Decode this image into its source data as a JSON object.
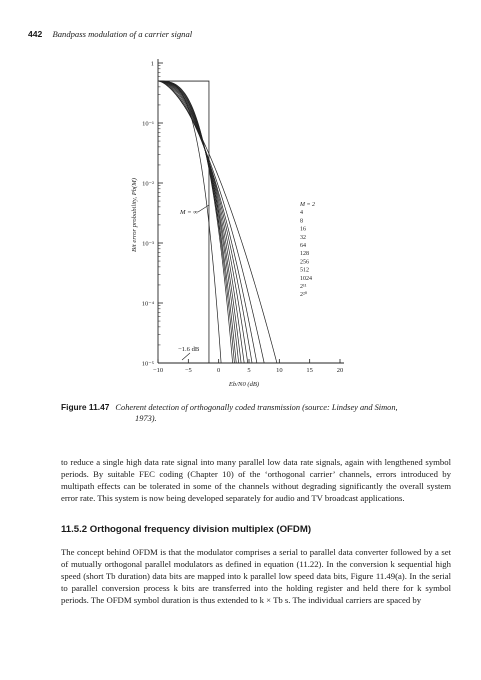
{
  "header": {
    "page_number": "442",
    "running_title": "Bandpass modulation of a carrier signal"
  },
  "chart_data": {
    "type": "line",
    "title": "",
    "xlabel": "Eb/N0 (dB)",
    "ylabel": "Bit error probability, Pb(M)",
    "xlim": [
      -10,
      20
    ],
    "ylim_log10": [
      -5,
      0
    ],
    "y_scale": "log",
    "x_ticks": [
      "−10",
      "−5",
      "0",
      "5",
      "10",
      "15",
      "20"
    ],
    "y_ticks": [
      "1",
      "10⁻¹",
      "10⁻²",
      "10⁻³",
      "10⁻⁴",
      "10⁻⁵"
    ],
    "series_labels": [
      "M = 2",
      "4",
      "8",
      "16",
      "32",
      "64",
      "128",
      "256",
      "512",
      "1024",
      "2¹¹",
      "2²⁰"
    ],
    "limit_label": "M = ∞",
    "annotation": "−1.6 dB",
    "series": [
      {
        "name": "M = 2",
        "threshold_db": 9.6
      },
      {
        "name": "4",
        "threshold_db": 7.5
      },
      {
        "name": "8",
        "threshold_db": 6.3
      },
      {
        "name": "16",
        "threshold_db": 5.5
      },
      {
        "name": "32",
        "threshold_db": 4.8
      },
      {
        "name": "64",
        "threshold_db": 4.2
      },
      {
        "name": "128",
        "threshold_db": 3.7
      },
      {
        "name": "256",
        "threshold_db": 3.3
      },
      {
        "name": "512",
        "threshold_db": 2.9
      },
      {
        "name": "1024",
        "threshold_db": 2.6
      },
      {
        "name": "2¹¹",
        "threshold_db": 2.3
      },
      {
        "name": "2²⁰",
        "threshold_db": 0.4
      }
    ],
    "limit_threshold_db": -1.6
  },
  "figure": {
    "label": "Figure 11.47",
    "caption_line1": "Coherent detection of orthogonally coded transmission (source: Lindsey and Simon,",
    "caption_line2": "1973)."
  },
  "body": {
    "para1": "to reduce a single high data rate signal into many parallel low data rate signals, again with lengthened symbol periods. By suitable FEC coding (Chapter 10) of the ‘orthogonal carrier’ channels, errors introduced by multipath effects can be tolerated in some of the channels without degrading significantly the overall system error rate. This system is now being developed separately for audio and TV broadcast applications.",
    "section_heading": "11.5.2 Orthogonal frequency division multiplex (OFDM)",
    "para2": "The concept behind OFDM is that the modulator comprises a serial to parallel data converter followed by a set of mutually orthogonal parallel modulators as defined in equation (11.22). In the conversion k sequential high speed (short Tb duration) data bits are mapped into k parallel low speed data bits, Figure 11.49(a). In the serial to parallel conversion process k bits are transferred into the holding register and held there for k symbol periods. The OFDM symbol duration is thus extended to k × Tb s. The individual carriers are spaced by"
  }
}
